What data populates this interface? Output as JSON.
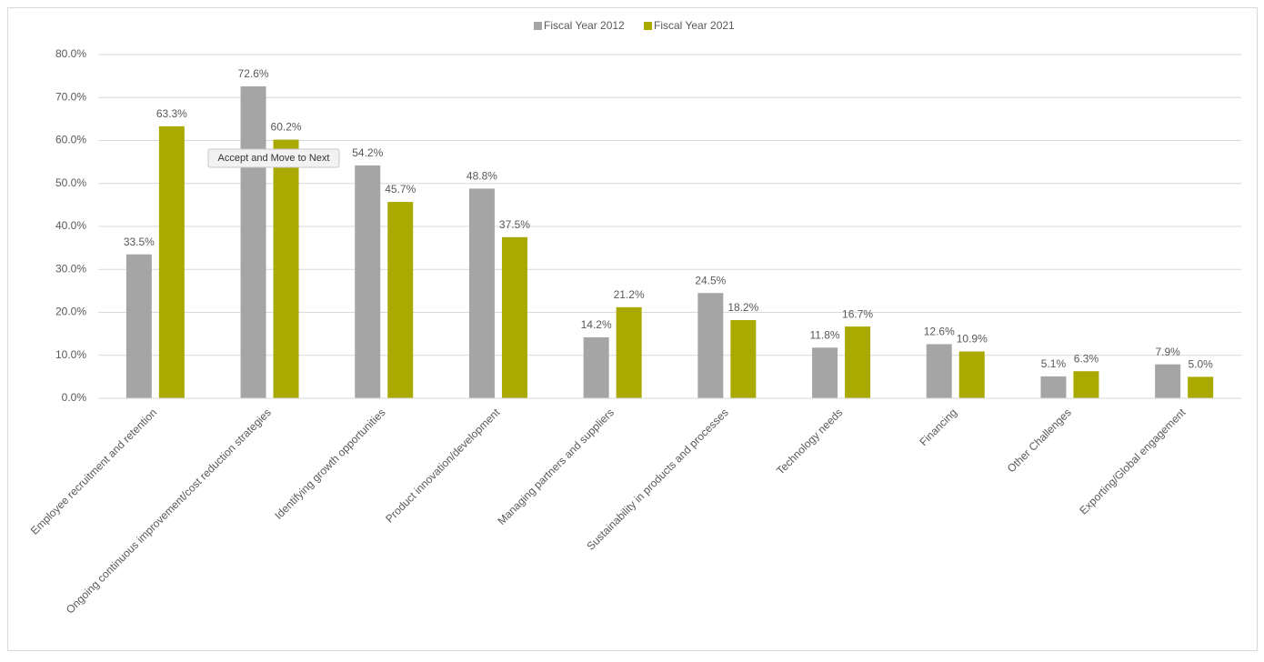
{
  "chart_data": {
    "type": "bar",
    "categories": [
      "Employee recruitment and retention",
      "Ongoing continuous improvement/cost reduction strategies",
      "Identifying growth opportunities",
      "Product innovation/development",
      "Managing partners and suppliers",
      "Sustainability in products and processes",
      "Technology needs",
      "Financing",
      "Other Challenges",
      "Exporting/Global engagement"
    ],
    "series": [
      {
        "name": "Fiscal Year 2012",
        "color": "#a5a5a5",
        "values": [
          33.5,
          72.6,
          54.2,
          48.8,
          14.2,
          24.5,
          11.8,
          12.6,
          5.1,
          7.9
        ],
        "value_labels": [
          "33.5%",
          "72.6%",
          "54.2%",
          "48.8%",
          "14.2%",
          "24.5%",
          "11.8%",
          "12.6%",
          "5.1%",
          "7.9%"
        ]
      },
      {
        "name": "Fiscal Year 2021",
        "color": "#a9a900",
        "values": [
          63.3,
          60.2,
          45.7,
          37.5,
          21.2,
          18.2,
          16.7,
          10.9,
          6.3,
          5.0
        ],
        "value_labels": [
          "63.3%",
          "60.2%",
          "45.7%",
          "37.5%",
          "21.2%",
          "18.2%",
          "16.7%",
          "10.9%",
          "6.3%",
          "5.0%"
        ]
      }
    ],
    "ylim": [
      0,
      80
    ],
    "yticks": [
      {
        "value": 0,
        "label": "0.0%"
      },
      {
        "value": 10,
        "label": "10.0%"
      },
      {
        "value": 20,
        "label": "20.0%"
      },
      {
        "value": 30,
        "label": "30.0%"
      },
      {
        "value": 40,
        "label": "40.0%"
      },
      {
        "value": 50,
        "label": "50.0%"
      },
      {
        "value": 60,
        "label": "60.0%"
      },
      {
        "value": 70,
        "label": "70.0%"
      },
      {
        "value": 80,
        "label": "80.0%"
      }
    ],
    "grid": true,
    "legend": "top",
    "tooltip": "Accept and Move to Next"
  }
}
